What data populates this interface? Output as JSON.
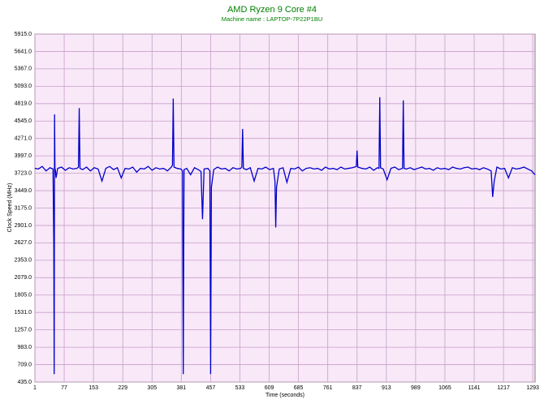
{
  "chart_data": {
    "type": "line",
    "title": "AMD Ryzen 9 Core #4",
    "subtitle": "Machine name : LAPTOP-7P22P1BU",
    "x_label": "Time (seconds)",
    "y_label": "Clock Speed (MHz)",
    "color": "#0000cc",
    "grid": true,
    "x": [
      1,
      10,
      20,
      30,
      40,
      48,
      50,
      51,
      52,
      53,
      54,
      56,
      60,
      70,
      80,
      90,
      100,
      110,
      114,
      116,
      118,
      125,
      135,
      145,
      155,
      165,
      175,
      185,
      195,
      205,
      215,
      225,
      235,
      245,
      255,
      265,
      275,
      285,
      295,
      305,
      315,
      325,
      335,
      345,
      355,
      358,
      360,
      362,
      370,
      380,
      384,
      386,
      388,
      395,
      405,
      415,
      425,
      432,
      436,
      440,
      450,
      455,
      457,
      459,
      465,
      475,
      485,
      495,
      505,
      515,
      525,
      535,
      538,
      540,
      542,
      550,
      560,
      570,
      580,
      590,
      600,
      610,
      620,
      624,
      626,
      628,
      635,
      645,
      655,
      665,
      675,
      685,
      695,
      705,
      715,
      725,
      735,
      745,
      755,
      765,
      775,
      785,
      795,
      805,
      815,
      825,
      835,
      837,
      839,
      850,
      860,
      870,
      880,
      890,
      894,
      896,
      898,
      905,
      915,
      925,
      935,
      945,
      955,
      957,
      959,
      965,
      975,
      985,
      995,
      1005,
      1015,
      1025,
      1035,
      1045,
      1055,
      1065,
      1075,
      1085,
      1095,
      1105,
      1115,
      1125,
      1135,
      1145,
      1155,
      1165,
      1175,
      1185,
      1189,
      1193,
      1200,
      1210,
      1220,
      1230,
      1240,
      1250,
      1260,
      1270,
      1280,
      1290,
      1299
    ],
    "values": [
      3800,
      3790,
      3830,
      3760,
      3810,
      3790,
      2600,
      560,
      4650,
      3800,
      3780,
      3650,
      3800,
      3820,
      3770,
      3810,
      3790,
      3800,
      3820,
      4750,
      3800,
      3780,
      3820,
      3760,
      3810,
      3790,
      3600,
      3800,
      3830,
      3780,
      3810,
      3650,
      3800,
      3790,
      3820,
      3740,
      3800,
      3790,
      3830,
      3770,
      3810,
      3790,
      3800,
      3760,
      3820,
      3850,
      4900,
      3820,
      3800,
      3790,
      3760,
      560,
      3780,
      3800,
      3700,
      3810,
      3780,
      3750,
      3000,
      3790,
      3800,
      3760,
      560,
      3500,
      3780,
      3820,
      3790,
      3800,
      3760,
      3810,
      3790,
      3800,
      3820,
      4420,
      3800,
      3780,
      3810,
      3600,
      3800,
      3790,
      3820,
      3780,
      3800,
      3600,
      2870,
      3500,
      3790,
      3810,
      3580,
      3800,
      3790,
      3820,
      3760,
      3800,
      3810,
      3790,
      3800,
      3770,
      3820,
      3790,
      3800,
      3780,
      3820,
      3790,
      3800,
      3810,
      3830,
      4080,
      3820,
      3800,
      3790,
      3820,
      3770,
      3810,
      3800,
      4920,
      3810,
      3790,
      3620,
      3800,
      3820,
      3780,
      3800,
      4870,
      3800,
      3790,
      3810,
      3780,
      3800,
      3820,
      3790,
      3800,
      3770,
      3810,
      3790,
      3800,
      3780,
      3820,
      3800,
      3790,
      3810,
      3820,
      3790,
      3800,
      3780,
      3810,
      3790,
      3760,
      3350,
      3600,
      3820,
      3790,
      3800,
      3650,
      3810,
      3790,
      3800,
      3820,
      3790,
      3760,
      3700
    ],
    "xlim": [
      1,
      1299
    ],
    "ylim": [
      435,
      5915
    ],
    "xticks": [
      1,
      77,
      153,
      229,
      305,
      381,
      457,
      533,
      609,
      685,
      761,
      837,
      913,
      989,
      1065,
      1141,
      1217,
      1293
    ],
    "yticks": [
      {
        "value": 435,
        "label": "435.0"
      },
      {
        "value": 709,
        "label": "709.0"
      },
      {
        "value": 983,
        "label": "983.0"
      },
      {
        "value": 1257,
        "label": "1257.0"
      },
      {
        "value": 1531,
        "label": "1531.0"
      },
      {
        "value": 1805,
        "label": "1805.0"
      },
      {
        "value": 2079,
        "label": "2079.0"
      },
      {
        "value": 2353,
        "label": "2353.0"
      },
      {
        "value": 2627,
        "label": "2627.0"
      },
      {
        "value": 2901,
        "label": "2901.0"
      },
      {
        "value": 3175,
        "label": "3175.0"
      },
      {
        "value": 3449,
        "label": "3449.0"
      },
      {
        "value": 3723,
        "label": "3723.0"
      },
      {
        "value": 3997,
        "label": "3997.0"
      },
      {
        "value": 4271,
        "label": "4271.0"
      },
      {
        "value": 4545,
        "label": "4545.0"
      },
      {
        "value": 4819,
        "label": "4819.0"
      },
      {
        "value": 5093,
        "label": "5093.0"
      },
      {
        "value": 5367,
        "label": "5367.0"
      },
      {
        "value": 5641,
        "label": "5641.0"
      },
      {
        "value": 5915,
        "label": "5915.0"
      }
    ]
  }
}
